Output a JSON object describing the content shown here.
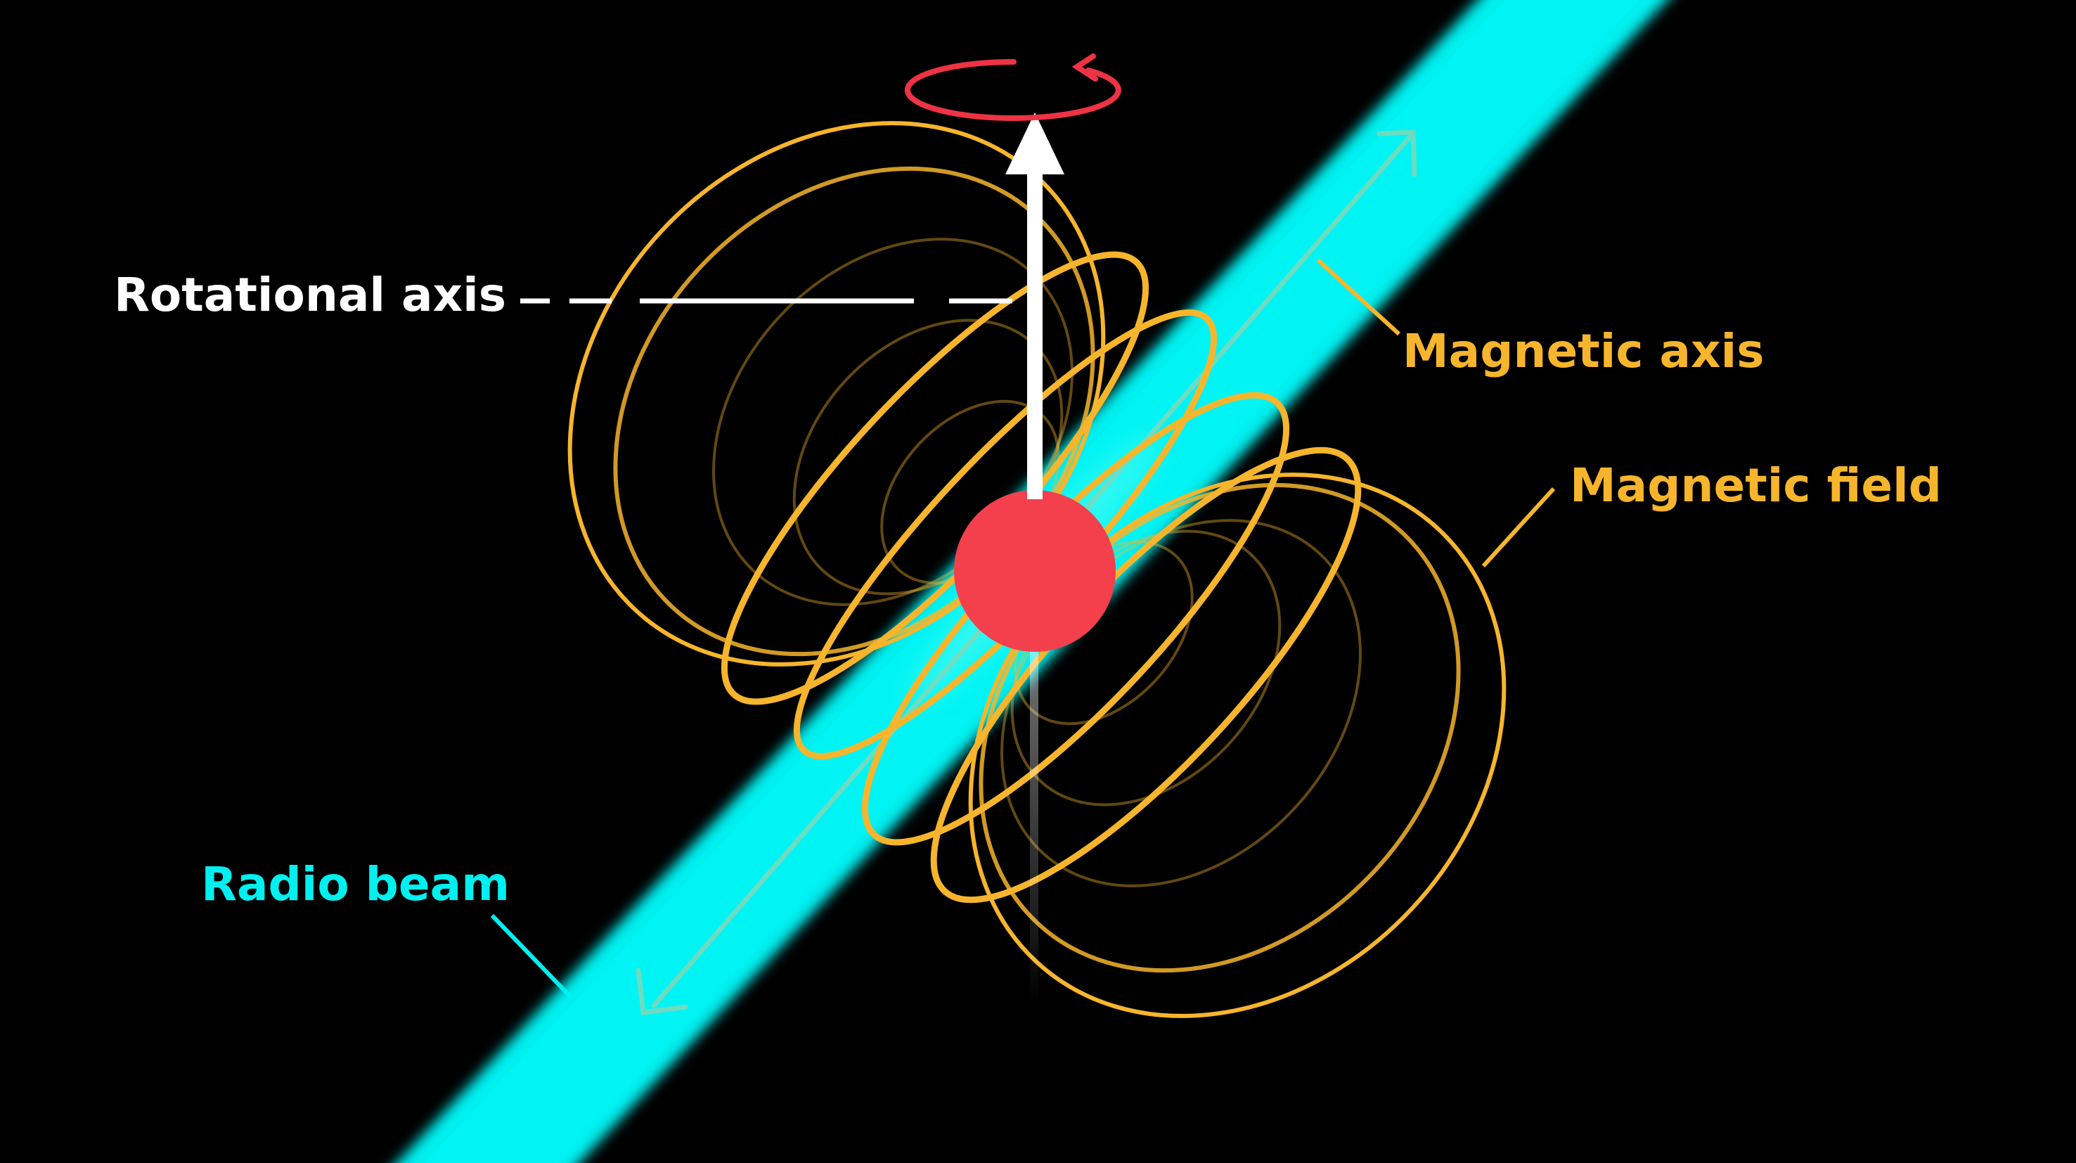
{
  "labels": {
    "rotational_axis": "Rotational axis",
    "magnetic_axis": "Magnetic axis",
    "magnetic_field": "Magnetic field",
    "radio_beam": "Radio beam"
  },
  "colors": {
    "background": "#000000",
    "star": "#f43f4c",
    "field_lines": "#f6b52c",
    "radio_beam": "#00f0f0",
    "rotation_arrow": "#ee3344",
    "rotational_axis": "#ffffff",
    "magnetic_axis_arrow": "#7fd8b8"
  },
  "icons": {
    "rotation": "circular-arrow-icon"
  }
}
